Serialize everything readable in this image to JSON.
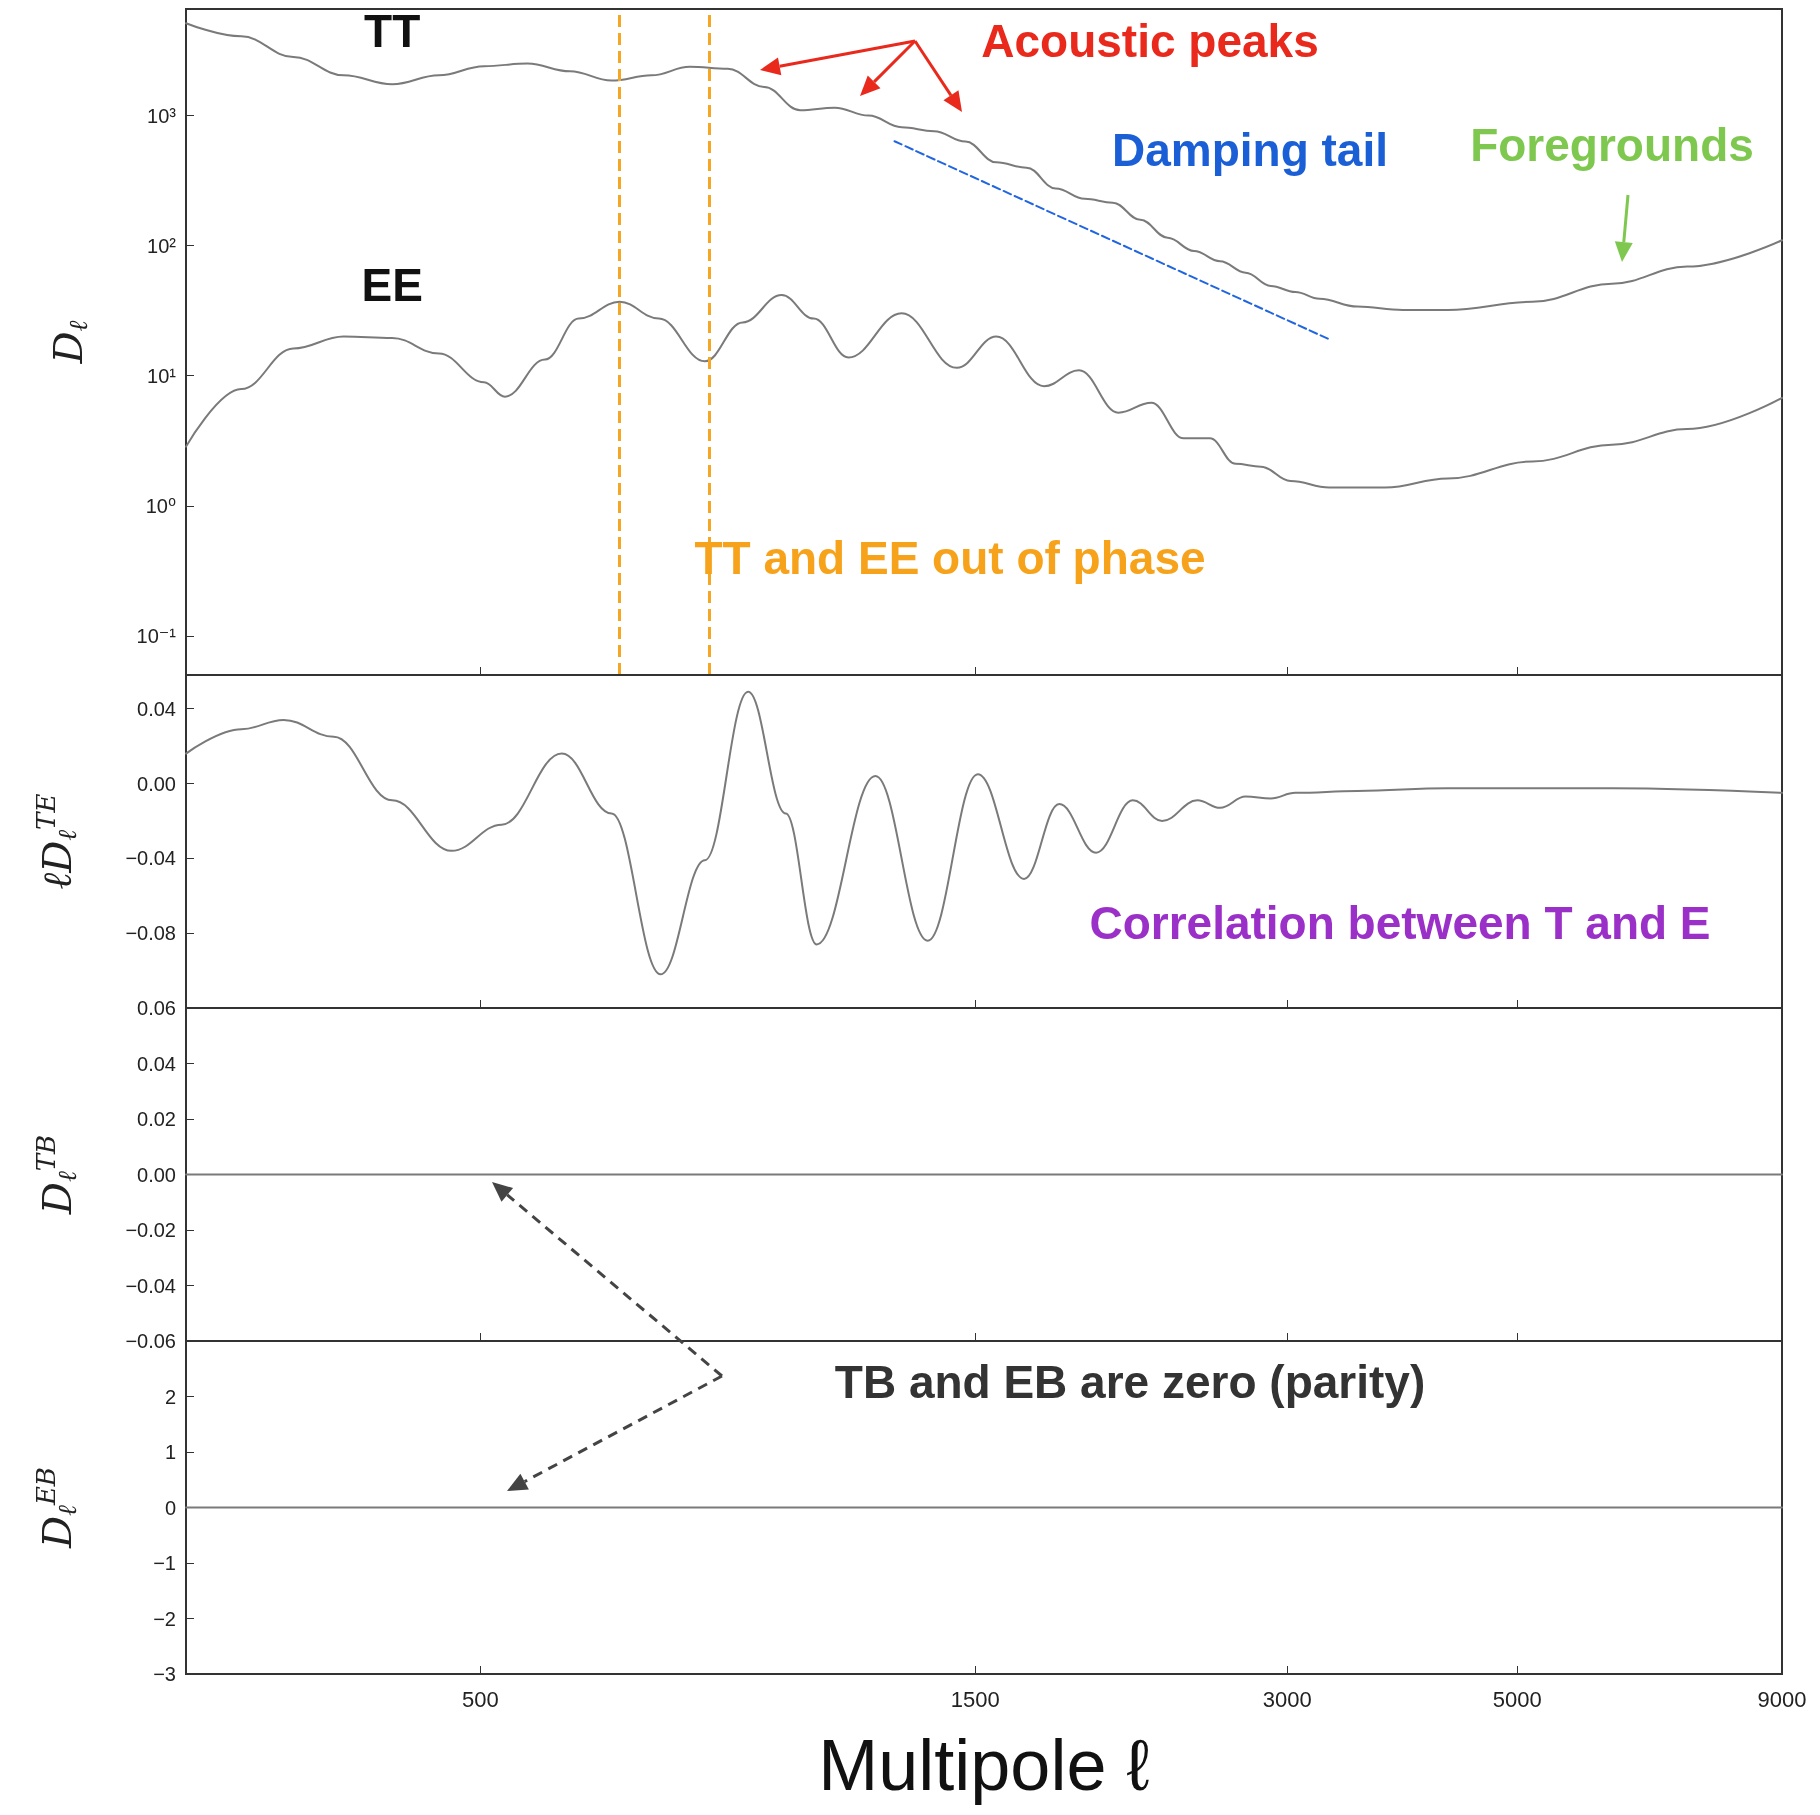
{
  "chart_data": [
    {
      "type": "line",
      "ylabel": "D$_{ℓ}$",
      "log": "xy",
      "tick_labels": "y",
      "xlim": [
        260,
        9000
      ],
      "xticks": [
        500,
        1500,
        3000,
        5000,
        9000
      ],
      "ylim": [
        0.05,
        6600
      ],
      "yticks": [
        {
          "value": 0.1,
          "label": "10⁻¹"
        },
        {
          "value": 1,
          "label": "10⁰"
        },
        {
          "value": 10,
          "label": "10¹"
        },
        {
          "value": 100,
          "label": "10²"
        },
        {
          "value": 1000,
          "label": "10³"
        }
      ],
      "series": [
        {
          "name": "TT",
          "color": "#7a7a7a",
          "x": [
            260,
            294,
            330,
            369,
            411,
            456,
            504,
            555,
            610,
            669,
            731,
            796,
            866,
            939,
            1017,
            1098,
            1184,
            1274,
            1369,
            1468,
            1572,
            1681,
            1794,
            1913,
            2036,
            2165,
            2300,
            2439,
            2584,
            2735,
            2892,
            3054,
            3223,
            3505,
            3878,
            4283,
            5169,
            6169,
            7290,
            9000
          ],
          "values": [
            5130,
            4070,
            2820,
            2040,
            1740,
            2040,
            2400,
            2510,
            2190,
            1860,
            2040,
            2370,
            2290,
            1660,
            1100,
            1150,
            1000,
            813,
            759,
            631,
            437,
            398,
            275,
            229,
            214,
            158,
            115,
            91,
            76,
            62,
            49,
            44,
            39,
            34,
            32,
            32,
            37,
            51,
            69,
            110
          ]
        },
        {
          "name": "EE",
          "color": "#7a7a7a",
          "x": [
            260,
            294,
            330,
            369,
            411,
            456,
            504,
            528,
            577,
            622,
            681,
            743,
            823,
            895,
            976,
            1048,
            1132,
            1274,
            1440,
            1572,
            1748,
            1889,
            2062,
            2218,
            2383,
            2526,
            2675,
            2829,
            3022,
            3293,
            3728,
            4283,
            5169,
            6169,
            7290,
            9000
          ],
          "values": [
            2.85,
            7.9,
            16.2,
            20,
            19.5,
            14.8,
            8.9,
            6.9,
            13.3,
            27.5,
            37,
            27.5,
            12.9,
            25.7,
            41.7,
            27.5,
            13.8,
            30.2,
            11.5,
            20,
            8.3,
            11,
            5.2,
            6.2,
            3.3,
            3.3,
            2.1,
            2.0,
            1.55,
            1.38,
            1.38,
            1.62,
            2.19,
            2.95,
            3.89,
            6.76
          ]
        },
        {
          "color": "#2166e0",
          "line_style": "dashed",
          "x": [
            1254,
            3295
          ],
          "values": [
            635,
            19
          ]
        }
      ],
      "ref_lines": [
        {
          "axis": "x",
          "value": 681,
          "color": "#f5a623",
          "line_style": "dashed"
        },
        {
          "axis": "x",
          "value": 831,
          "color": "#f5a623",
          "line_style": "dashed"
        }
      ],
      "annotations": [
        "Acoustic peaks",
        "Damping tail",
        "Foregrounds",
        "TT and EE out of phase"
      ]
    },
    {
      "type": "line",
      "ylabel": "ℓD$_{ℓ}$$^{TE}$",
      "log": "x",
      "tick_labels": "y",
      "xlim": [
        260,
        9000
      ],
      "xticks": [
        500,
        1500,
        3000,
        5000,
        9000
      ],
      "ylim": [
        -0.12,
        0.058
      ],
      "yticks": [
        {
          "value": -0.08,
          "label": "−0.08"
        },
        {
          "value": -0.04,
          "label": "−0.04"
        },
        {
          "value": 0,
          "label": "0.00"
        },
        {
          "value": 0.04,
          "label": "0.04"
        }
      ],
      "series": [
        {
          "color": "#7a7a7a",
          "x": [
            260,
            294,
            323,
            361,
            411,
            469,
            524,
            599,
            669,
            746,
            823,
            906,
            985,
            1055,
            1202,
            1350,
            1509,
            1672,
            1808,
            1962,
            2129,
            2272,
            2457,
            2584,
            2735,
            2892,
            3054,
            3505,
            4283,
            6169,
            9000
          ],
          "values": [
            0.016,
            0.029,
            0.034,
            0.025,
            -0.009,
            -0.036,
            -0.022,
            0.016,
            -0.016,
            -0.102,
            -0.041,
            0.049,
            -0.016,
            -0.086,
            0.004,
            -0.084,
            0.005,
            -0.051,
            -0.011,
            -0.037,
            -0.009,
            -0.02,
            -0.009,
            -0.013,
            -0.007,
            -0.008,
            -0.005,
            -0.004,
            -0.0025,
            -0.0025,
            -0.005
          ]
        }
      ],
      "annotations": [
        "Correlation between T and E"
      ]
    },
    {
      "type": "line",
      "ylabel": "D$_{ℓ}$$^{TB}$",
      "log": "x",
      "tick_labels": "y",
      "xlim": [
        260,
        9000
      ],
      "xticks": [
        500,
        1500,
        3000,
        5000,
        9000
      ],
      "ylim": [
        -0.06,
        0.06
      ],
      "yticks": [
        {
          "value": -0.06,
          "label": "−0.06"
        },
        {
          "value": -0.04,
          "label": "−0.04"
        },
        {
          "value": -0.02,
          "label": "−0.02"
        },
        {
          "value": 0,
          "label": "0.00"
        },
        {
          "value": 0.02,
          "label": "0.02"
        },
        {
          "value": 0.04,
          "label": "0.04"
        },
        {
          "value": 0.06,
          "label": "0.06"
        }
      ],
      "series": [
        {
          "color": "#7a7a7a",
          "x": [
            260,
            9000
          ],
          "values": [
            0,
            0
          ]
        }
      ]
    },
    {
      "type": "line",
      "ylabel": "D$_{ℓ}$$^{EB}$",
      "xlabel": "Multipole ℓ",
      "log": "x",
      "xlim": [
        260,
        9000
      ],
      "xticks": [
        500,
        1500,
        3000,
        5000,
        9000
      ],
      "ylim": [
        -3,
        3
      ],
      "yticks": [
        {
          "value": -3,
          "label": "−3"
        },
        {
          "value": -2,
          "label": "−2"
        },
        {
          "value": -1,
          "label": "−1"
        },
        {
          "value": 0,
          "label": "0"
        },
        {
          "value": 1,
          "label": "1"
        },
        {
          "value": 2,
          "label": "2"
        }
      ],
      "series": [
        {
          "color": "#7a7a7a",
          "x": [
            260,
            9000
          ],
          "values": [
            0,
            0
          ]
        }
      ],
      "annotations": [
        "TB and EB are zero (parity)"
      ]
    }
  ]
}
